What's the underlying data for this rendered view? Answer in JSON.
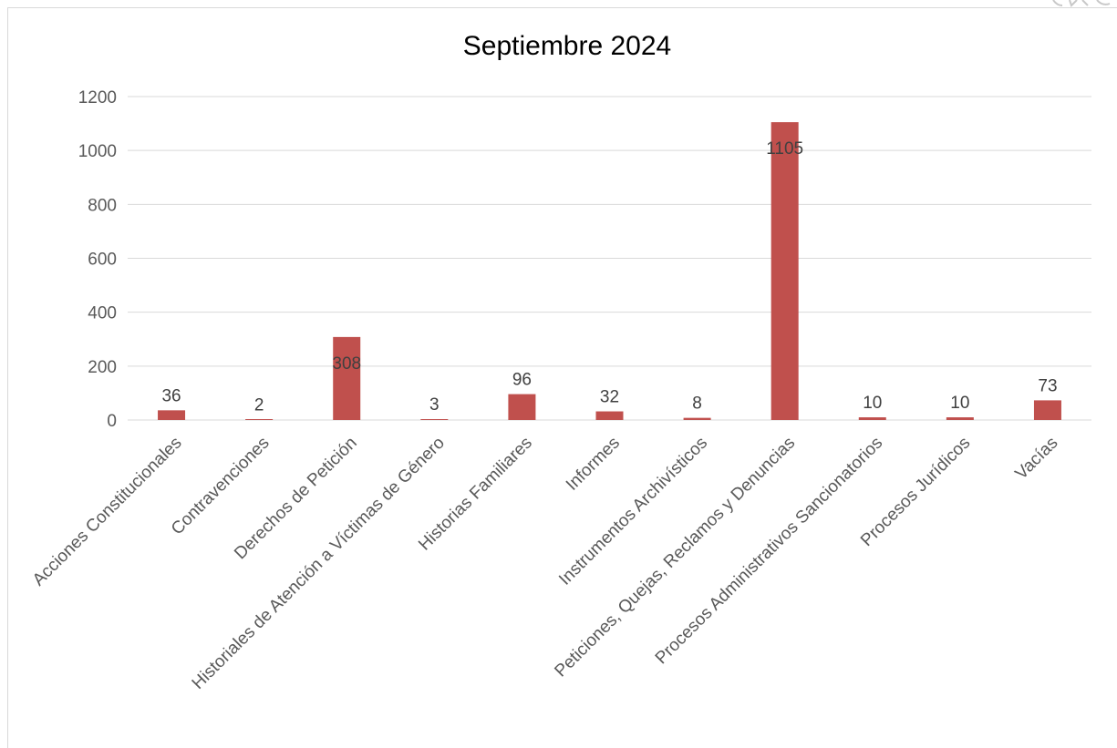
{
  "chart_data": {
    "type": "bar",
    "title": "Septiembre 2024",
    "xlabel": "",
    "ylabel": "",
    "categories": [
      "Acciones Constitucionales",
      "Contravenciones",
      "Derechos de Petición",
      "Historiales de Atención a Víctimas de Género",
      "Historias Familiares",
      "Informes",
      "Instrumentos Archivísticos",
      "Peticiones, Quejas, Reclamos y Denuncias",
      "Procesos Administrativos Sancionatorios",
      "Procesos Jurídicos",
      "Vacías"
    ],
    "values": [
      36,
      2,
      308,
      3,
      96,
      32,
      8,
      1105,
      10,
      10,
      73
    ],
    "ylim": [
      0,
      1200
    ],
    "yticks": [
      0,
      200,
      400,
      600,
      800,
      1000,
      1200
    ],
    "grid": true,
    "legend": "none",
    "bar_color": "#c0504d",
    "grid_color": "#d9d9d9"
  }
}
